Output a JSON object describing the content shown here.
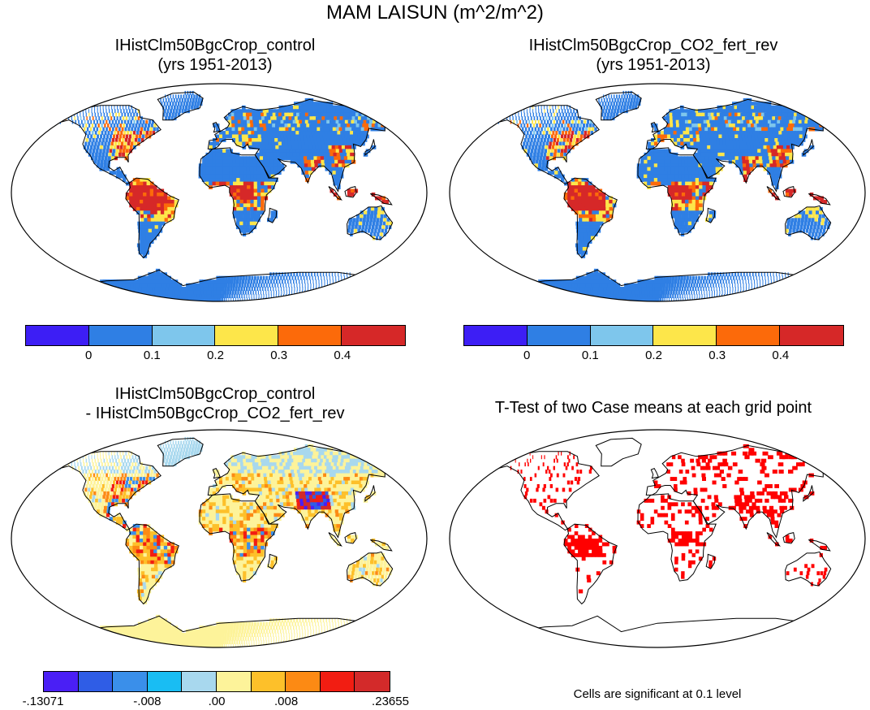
{
  "title": "MAM LAISUN (m^2/m^2)",
  "panels": [
    {
      "title_line1": "IHistClm50BgcCrop_control",
      "title_line2": "(yrs 1951-2013)",
      "kind": "mean"
    },
    {
      "title_line1": "IHistClm50BgcCrop_CO2_fert_rev",
      "title_line2": "(yrs 1951-2013)",
      "kind": "mean"
    },
    {
      "title_line1": "IHistClm50BgcCrop_control",
      "title_line2": "- IHistClm50BgcCrop_CO2_fert_rev",
      "kind": "diff"
    },
    {
      "title_line1": "T-Test of two Case means at each grid point",
      "title_line2": "",
      "kind": "ttest"
    }
  ],
  "colorbar_mean": {
    "colors": [
      "#3d1ef5",
      "#2f7fe4",
      "#7ec6ec",
      "#fde64a",
      "#fc6a0a",
      "#d62828"
    ],
    "tick_labels": [
      "0",
      "0.1",
      "0.2",
      "0.3",
      "0.4"
    ]
  },
  "colorbar_diff": {
    "colors": [
      "#4a1ff5",
      "#2f5de6",
      "#3a8fea",
      "#19bdf3",
      "#a8d8ee",
      "#fdf39a",
      "#fdc02a",
      "#fc8a14",
      "#f21d12",
      "#d32a2a"
    ],
    "tick_labels": [
      ".13071",
      ".008",
      ".00",
      ".008",
      ".23655"
    ],
    "tick_labels_prefix": [
      "-",
      "-",
      "",
      "",
      ""
    ]
  },
  "ttest_note": "Cells are significant at 0.1 level",
  "palette": {
    "ocean": "#ffffff",
    "mean_land_base": "#2f7fe4",
    "diff_land_base": "#fdf39a",
    "ttest_dot": "#ff0000"
  }
}
